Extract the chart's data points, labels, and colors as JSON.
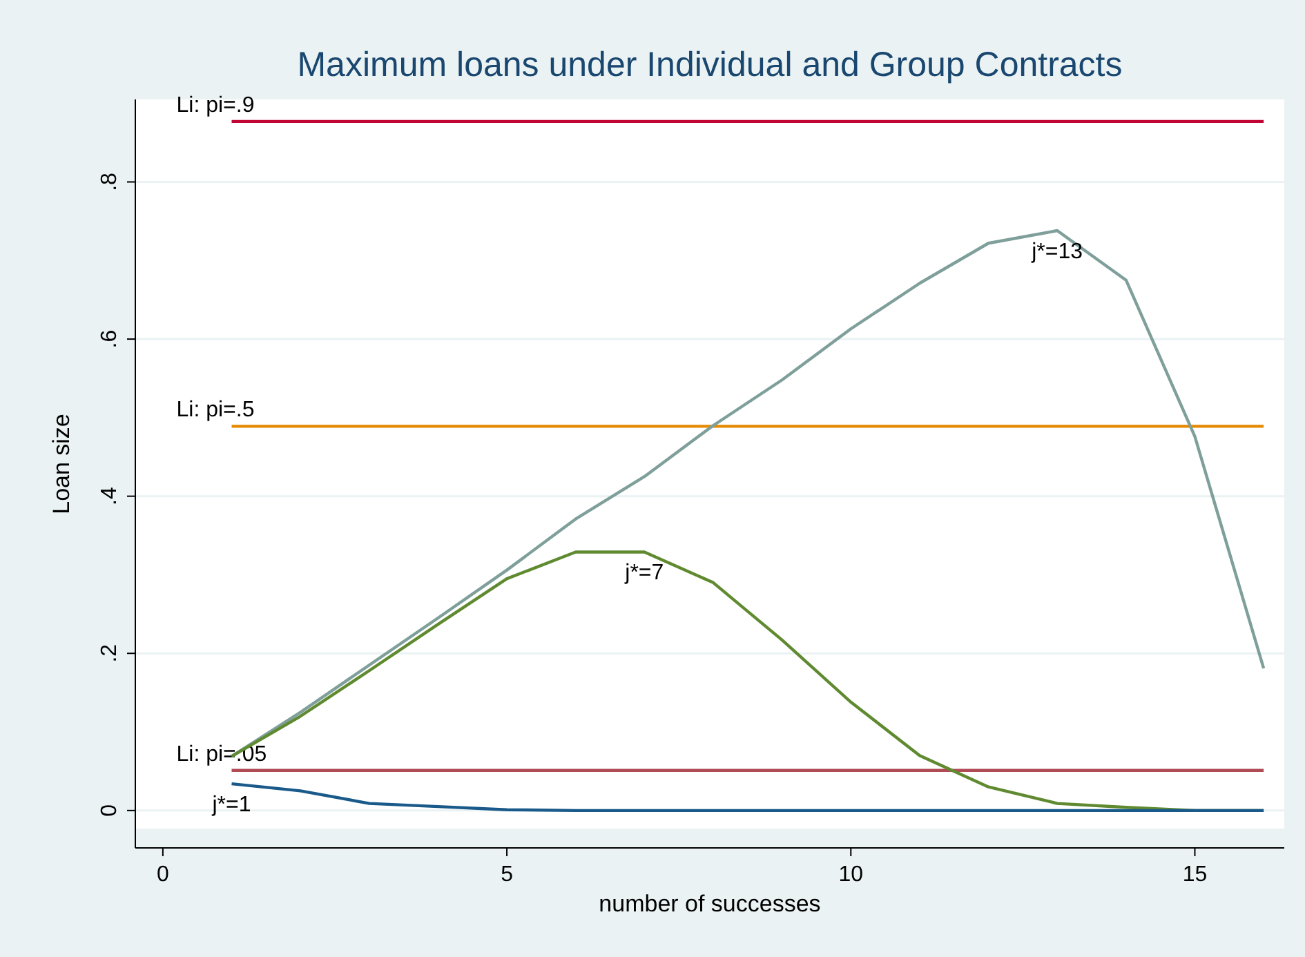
{
  "chart_data": {
    "type": "line",
    "title": "Maximum loans under Individual and Group Contracts",
    "xlabel": "number of successes",
    "ylabel": "Loan size",
    "x": [
      1,
      2,
      3,
      4,
      5,
      6,
      7,
      8,
      9,
      10,
      11,
      12,
      13,
      14,
      15,
      16
    ],
    "series": [
      {
        "name": "Li: pi=.9",
        "color": "#c10534",
        "values": [
          0.877,
          0.877,
          0.877,
          0.877,
          0.877,
          0.877,
          0.877,
          0.877,
          0.877,
          0.877,
          0.877,
          0.877,
          0.877,
          0.877,
          0.877,
          0.877
        ]
      },
      {
        "name": "Li: pi=.5",
        "color": "#e68a00",
        "values": [
          0.489,
          0.489,
          0.489,
          0.489,
          0.489,
          0.489,
          0.489,
          0.489,
          0.489,
          0.489,
          0.489,
          0.489,
          0.489,
          0.489,
          0.489,
          0.489
        ]
      },
      {
        "name": "Li: pi=.05",
        "color": "#b04a55",
        "values": [
          0.051,
          0.051,
          0.051,
          0.051,
          0.051,
          0.051,
          0.051,
          0.051,
          0.051,
          0.051,
          0.051,
          0.051,
          0.051,
          0.051,
          0.051,
          0.051
        ]
      },
      {
        "color": "#7f9f9a",
        "values": [
          0.069,
          0.125,
          0.185,
          0.245,
          0.306,
          0.371,
          0.425,
          0.49,
          0.548,
          0.613,
          0.671,
          0.722,
          0.738,
          0.675,
          0.476,
          0.181
        ]
      },
      {
        "color": "#5f8a2f",
        "values": [
          0.069,
          0.12,
          0.178,
          0.237,
          0.295,
          0.329,
          0.329,
          0.29,
          0.217,
          0.138,
          0.07,
          0.03,
          0.009,
          0.004,
          0.0,
          0.0
        ]
      },
      {
        "color": "#1a5a8a",
        "values": [
          0.034,
          0.025,
          0.009,
          0.005,
          0.001,
          0,
          0,
          0,
          0,
          0,
          0,
          0,
          0,
          0,
          0,
          0
        ]
      }
    ],
    "annotations": [
      {
        "text": "j*=13",
        "x": 13,
        "y": 0.738
      },
      {
        "text": "j*=7",
        "x": 7,
        "y": 0.329
      },
      {
        "text": "j*=1",
        "x": 1,
        "y": 0.034
      }
    ],
    "xlim": [
      -0.4,
      16.3
    ],
    "xticks": [
      0,
      5,
      10,
      15
    ],
    "ylim": [
      -0.023,
      0.905
    ],
    "yticks": [
      {
        "value": 0,
        "label": "0"
      },
      {
        "value": 0.2,
        "label": ".2"
      },
      {
        "value": 0.4,
        "label": ".4"
      },
      {
        "value": 0.6,
        "label": ".6"
      },
      {
        "value": 0.8,
        "label": ".8"
      }
    ],
    "grid": "y",
    "legend": false,
    "line_style": "solid",
    "marker": "none"
  }
}
